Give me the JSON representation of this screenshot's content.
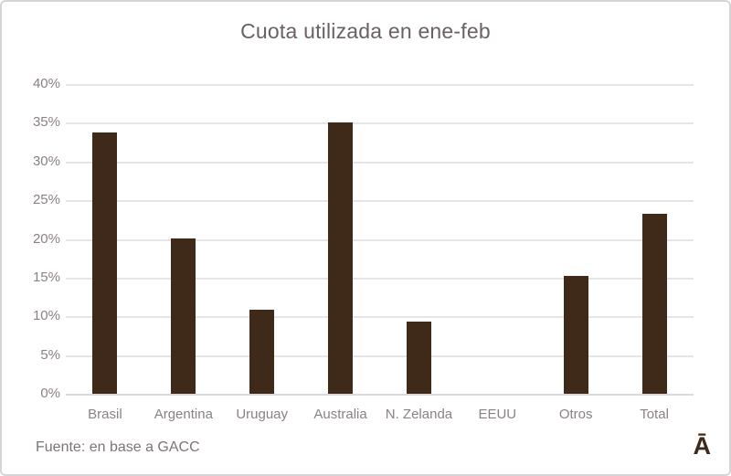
{
  "chart_data": {
    "type": "bar",
    "title": "Cuota utilizada en ene-feb",
    "categories": [
      "Brasil",
      "Argentina",
      "Uruguay",
      "Australia",
      "N. Zelanda",
      "EEUU",
      "Otros",
      "Total"
    ],
    "values": [
      33.7,
      20.1,
      10.8,
      35.0,
      9.3,
      0,
      15.2,
      23.3
    ],
    "unit": "%",
    "xlabel": "",
    "ylabel": "",
    "ylim": [
      0,
      40
    ],
    "ytick_step": 5,
    "ytick_labels": [
      "0%",
      "5%",
      "10%",
      "15%",
      "20%",
      "25%",
      "30%",
      "35%",
      "40%"
    ],
    "grid": "horizontal",
    "legend": null,
    "bar_color": "#3f2a19",
    "gridline_color": "#e7e4e7"
  },
  "footer": {
    "source": "Fuente: en base a GACC",
    "logo_glyph": "Ā"
  },
  "colors": {
    "title_text": "#6a6066",
    "axis_label_text": "#8a8187",
    "footer_text": "#7d7478",
    "border": "#d8d3d8",
    "background": "#ffffff"
  }
}
